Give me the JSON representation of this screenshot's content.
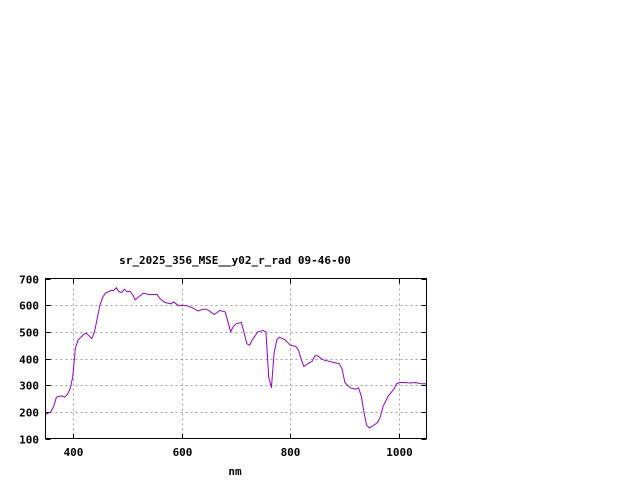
{
  "chart_data": {
    "type": "line",
    "title": "sr_2025_356_MSE__y02_r_rad 09-46-00",
    "xlabel": "nm",
    "ylabel": "",
    "xlim": [
      350,
      1050
    ],
    "ylim": [
      100,
      700
    ],
    "xticks": [
      400,
      600,
      800,
      1000
    ],
    "yticks": [
      100,
      200,
      300,
      400,
      500,
      600,
      700
    ],
    "grid": true,
    "line_color": "#9400d3",
    "series": [
      {
        "x": [
          350,
          360,
          365,
          370,
          380,
          385,
          390,
          395,
          400,
          405,
          410,
          420,
          425,
          430,
          435,
          440,
          445,
          450,
          455,
          460,
          470,
          475,
          480,
          485,
          490,
          495,
          500,
          505,
          510,
          515,
          520,
          530,
          540,
          550,
          555,
          560,
          570,
          580,
          585,
          590,
          595,
          600,
          610,
          620,
          630,
          640,
          645,
          650,
          660,
          670,
          680,
          685,
          690,
          695,
          700,
          710,
          720,
          725,
          730,
          740,
          750,
          755,
          760,
          765,
          770,
          775,
          780,
          790,
          800,
          810,
          815,
          820,
          825,
          830,
          840,
          845,
          850,
          860,
          870,
          880,
          890,
          895,
          900,
          910,
          920,
          925,
          930,
          935,
          940,
          945,
          950,
          960,
          965,
          970,
          980,
          990,
          995,
          1000,
          1010,
          1020,
          1030,
          1040,
          1050
        ],
        "y": [
          190,
          200,
          220,
          255,
          260,
          255,
          265,
          285,
          330,
          440,
          470,
          490,
          495,
          485,
          475,
          500,
          550,
          600,
          630,
          645,
          655,
          655,
          665,
          650,
          648,
          660,
          650,
          652,
          640,
          620,
          630,
          645,
          640,
          640,
          640,
          625,
          610,
          605,
          612,
          605,
          598,
          600,
          598,
          590,
          578,
          585,
          585,
          580,
          565,
          580,
          575,
          540,
          500,
          520,
          530,
          535,
          455,
          450,
          470,
          500,
          505,
          500,
          330,
          290,
          420,
          470,
          480,
          470,
          450,
          445,
          430,
          395,
          370,
          378,
          390,
          410,
          410,
          395,
          390,
          385,
          380,
          360,
          310,
          290,
          285,
          290,
          260,
          200,
          150,
          140,
          145,
          160,
          180,
          220,
          260,
          285,
          305,
          310,
          310,
          308,
          310,
          305,
          305
        ]
      }
    ]
  }
}
